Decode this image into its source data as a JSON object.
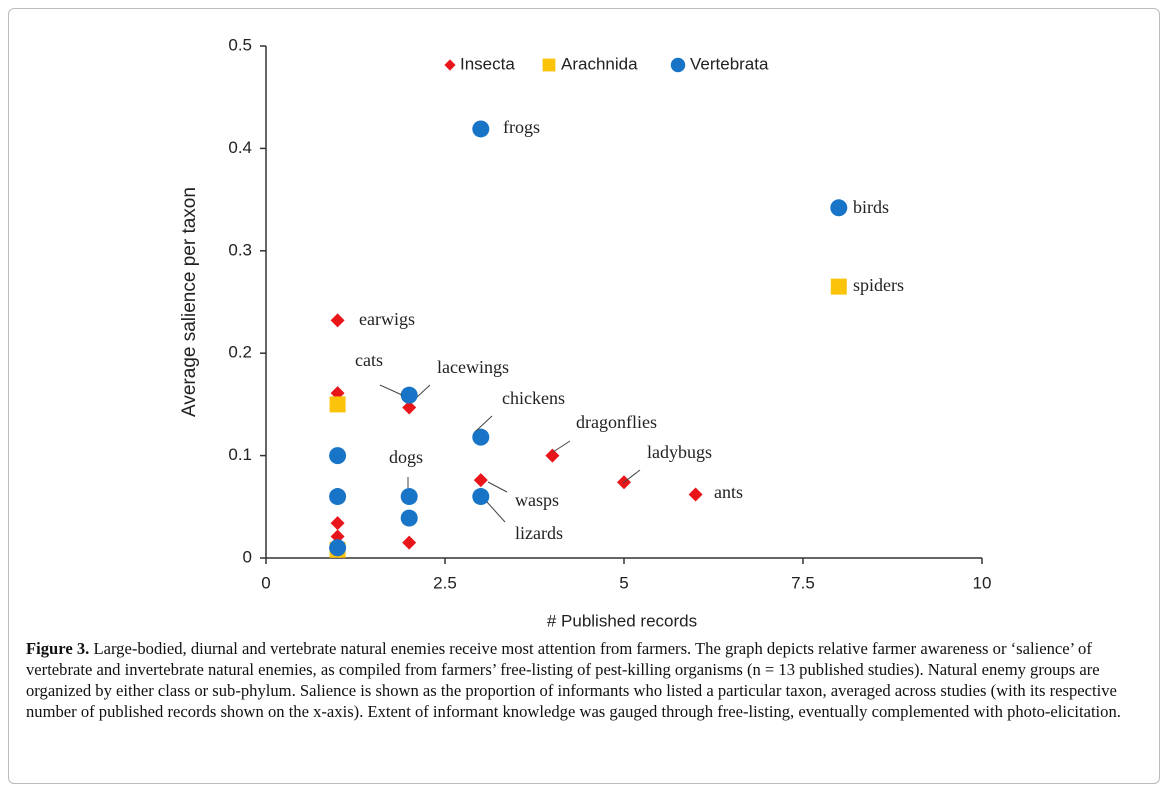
{
  "chart_data": {
    "type": "scatter",
    "xlabel": "# Published records",
    "ylabel": "Average salience per taxon",
    "xlim": [
      0,
      10
    ],
    "ylim": [
      0,
      0.5
    ],
    "xticks": [
      0,
      2.5,
      5,
      7.5,
      10
    ],
    "yticks": [
      0,
      0.1,
      0.2,
      0.3,
      0.4,
      0.5
    ],
    "grid": false,
    "legend": "top",
    "series": [
      {
        "name": "Insecta",
        "color": "#e8161b",
        "marker": "diamond",
        "x": [
          1,
          1,
          2,
          1,
          1,
          2,
          3,
          4,
          5,
          6
        ],
        "values": [
          0.232,
          0.161,
          0.147,
          0.034,
          0.021,
          0.015,
          0.076,
          0.1,
          0.074,
          0.062
        ],
        "labels": [
          "earwigs",
          null,
          "lacewings",
          null,
          null,
          null,
          "wasps",
          "dragonflies",
          "ladybugs",
          "ants"
        ]
      },
      {
        "name": "Arachnida",
        "color": "#fcc30b",
        "marker": "square",
        "x": [
          1,
          1,
          8
        ],
        "values": [
          0.15,
          0.008,
          0.265
        ],
        "labels": [
          null,
          null,
          "spiders"
        ]
      },
      {
        "name": "Vertebrata",
        "color": "#1874c6",
        "marker": "circle",
        "x": [
          3,
          8,
          2,
          3,
          1,
          1,
          2,
          2,
          3,
          1
        ],
        "values": [
          0.419,
          0.342,
          0.159,
          0.118,
          0.1,
          0.06,
          0.06,
          0.039,
          0.06,
          0.01
        ],
        "labels": [
          "frogs",
          "birds",
          "cats",
          "chickens",
          null,
          null,
          "dogs",
          null,
          "lizards",
          null
        ]
      }
    ]
  },
  "caption": {
    "label": "Figure 3.",
    "text": "Large-bodied, diurnal and vertebrate natural enemies receive most attention from farmers. The graph depicts relative farmer awareness or ‘salience’ of vertebrate and invertebrate natural enemies, as compiled from farmers’ free-listing of pest-killing organisms (n = 13 published studies). Natural enemy groups are organized by either class or sub-phylum. Salience is shown as the proportion of informants who listed a particular taxon, averaged across studies (with its respective number of published records shown on the x-axis). Extent of informant knowledge was gauged through free-listing, eventually complemented with photo-elicitation."
  }
}
